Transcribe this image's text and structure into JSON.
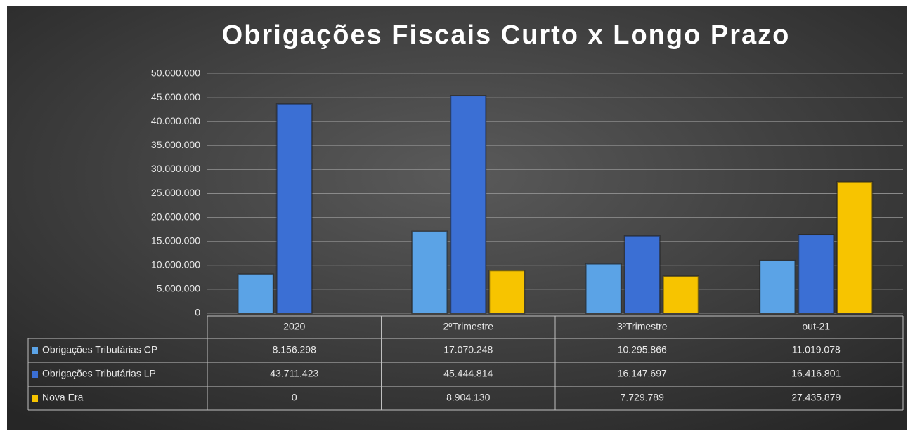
{
  "chart_data": {
    "type": "bar",
    "title": "Obrigações Fiscais Curto x Longo Prazo",
    "categories": [
      "2020",
      "2ºTrimestre",
      "3ºTrimestre",
      "out-21"
    ],
    "series": [
      {
        "name": "Obrigações Tributárias CP",
        "color": "#5ba3e6",
        "values": [
          8156298,
          17070248,
          10295866,
          11019078
        ],
        "value_labels": [
          "8.156.298",
          "17.070.248",
          "10.295.866",
          "11.019.078"
        ]
      },
      {
        "name": "Obrigações Tributárias LP",
        "color": "#3b6fd4",
        "values": [
          43711423,
          45444814,
          16147697,
          16416801
        ],
        "value_labels": [
          "43.711.423",
          "45.444.814",
          "16.147.697",
          "16.416.801"
        ]
      },
      {
        "name": "Nova Era",
        "color": "#f7c400",
        "values": [
          0,
          8904130,
          7729789,
          27435879
        ],
        "value_labels": [
          "0",
          "8.904.130",
          "7.729.789",
          "27.435.879"
        ]
      }
    ],
    "ylim": [
      0,
      50000000
    ],
    "yticks": [
      0,
      {
        "value": 5000000,
        "label": "5.000.000"
      },
      {
        "value": 10000000,
        "label": "10.000.000"
      },
      {
        "value": 15000000,
        "label": "15.000.000"
      },
      {
        "value": 20000000,
        "label": "20.000.000"
      },
      {
        "value": 25000000,
        "label": "25.000.000"
      },
      {
        "value": 30000000,
        "label": "30.000.000"
      },
      {
        "value": 35000000,
        "label": "35.000.000"
      },
      {
        "value": 40000000,
        "label": "40.000.000"
      },
      {
        "value": 45000000,
        "label": "45.000.000"
      },
      {
        "value": 50000000,
        "label": "50.000.000"
      }
    ],
    "grid": true
  }
}
